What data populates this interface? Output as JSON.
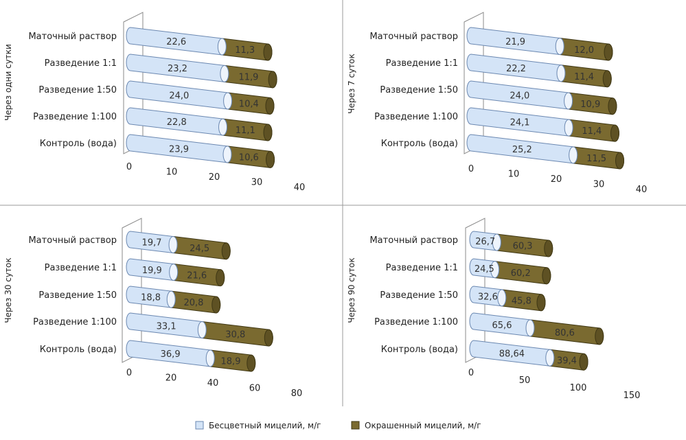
{
  "chart_data": [
    {
      "type": "bar",
      "orientation": "horizontal",
      "stacked": true,
      "ylabel": "Через одни сутки",
      "categories": [
        "Маточный раствор",
        "Разведение 1:1",
        "Разведение 1:50",
        "Разведение 1:100",
        "Контроль (вода)"
      ],
      "series": [
        {
          "name": "Бесцветный мицелий, м/г",
          "values": [
            22.6,
            23.2,
            24.0,
            22.8,
            23.9
          ],
          "labels": [
            "22,6",
            "23,2",
            "24,0",
            "22,8",
            "23,9"
          ]
        },
        {
          "name": "Окрашенный мицелий, м/г",
          "values": [
            11.3,
            11.9,
            10.4,
            11.1,
            10.6
          ],
          "labels": [
            "11,3",
            "11,9",
            "10,4",
            "11,1",
            "10,6"
          ]
        }
      ],
      "xlim": [
        0,
        40
      ],
      "xticks": [
        "0",
        "10",
        "20",
        "30",
        "40"
      ]
    },
    {
      "type": "bar",
      "orientation": "horizontal",
      "stacked": true,
      "ylabel": "Через 7 суток",
      "categories": [
        "Маточный раствор",
        "Разведение 1:1",
        "Разведение 1:50",
        "Разведение 1:100",
        "Контроль (вода)"
      ],
      "series": [
        {
          "name": "Бесцветный мицелий, м/г",
          "values": [
            21.9,
            22.2,
            24.0,
            24.1,
            25.2
          ],
          "labels": [
            "21,9",
            "22,2",
            "24,0",
            "24,1",
            "25,2"
          ]
        },
        {
          "name": "Окрашенный мицелий, м/г",
          "values": [
            12.0,
            11.4,
            10.9,
            11.4,
            11.5
          ],
          "labels": [
            "12,0",
            "11,4",
            "10,9",
            "11,4",
            "11,5"
          ]
        }
      ],
      "xlim": [
        0,
        40
      ],
      "xticks": [
        "0",
        "10",
        "20",
        "30",
        "40"
      ]
    },
    {
      "type": "bar",
      "orientation": "horizontal",
      "stacked": true,
      "ylabel": "Через 30 суток",
      "categories": [
        "Маточный раствор",
        "Разведение 1:1",
        "Разведение 1:50",
        "Разведение 1:100",
        "Контроль (вода)"
      ],
      "series": [
        {
          "name": "Бесцветный мицелий, м/г",
          "values": [
            19.7,
            19.9,
            18.8,
            33.1,
            36.9
          ],
          "labels": [
            "19,7",
            "19,9",
            "18,8",
            "33,1",
            "36,9"
          ]
        },
        {
          "name": "Окрашенный мицелий, м/г",
          "values": [
            24.5,
            21.6,
            20.8,
            30.8,
            18.9
          ],
          "labels": [
            "24,5",
            "21,6",
            "20,8",
            "30,8",
            "18,9"
          ]
        }
      ],
      "xlim": [
        0,
        80
      ],
      "xticks": [
        "0",
        "20",
        "40",
        "60",
        "80"
      ]
    },
    {
      "type": "bar",
      "orientation": "horizontal",
      "stacked": true,
      "ylabel": "Через 90 суток",
      "categories": [
        "Маточный раствор",
        "Разведение 1:1",
        "Разведение 1:50",
        "Разведение 1:100",
        "Контроль (вода)"
      ],
      "series": [
        {
          "name": "Бесцветный мицелий, м/г",
          "values": [
            26.7,
            24.5,
            32.6,
            65.6,
            88.64
          ],
          "labels": [
            "26,7",
            "24,5",
            "32,6",
            "65,6",
            "88,64"
          ]
        },
        {
          "name": "Окрашенный мицелий, м/г",
          "values": [
            60.3,
            60.2,
            45.8,
            80.6,
            39.4
          ],
          "labels": [
            "60,3",
            "60,2",
            "45,8",
            "80,6",
            "39,4"
          ]
        }
      ],
      "xlim": [
        0,
        150
      ],
      "xticks": [
        "0",
        "50",
        "100",
        "150"
      ]
    }
  ],
  "legend": {
    "position": "bottom",
    "items": [
      {
        "label": "Бесцветный мицелий, м/г",
        "color": "#d4e4f7"
      },
      {
        "label": "Окрашенный мицелий, м/г",
        "color": "#7a6a30"
      }
    ]
  },
  "colors": {
    "colorless_fill": "#d4e4f7",
    "colorless_stroke": "#6a87b0",
    "colorless_cap": "#eef4fc",
    "colored_fill": "#7a6a30",
    "colored_stroke": "#3f3714",
    "colored_cap": "#5e5123",
    "divider": "#9a9a9a",
    "axis": "#8a8a8a"
  }
}
